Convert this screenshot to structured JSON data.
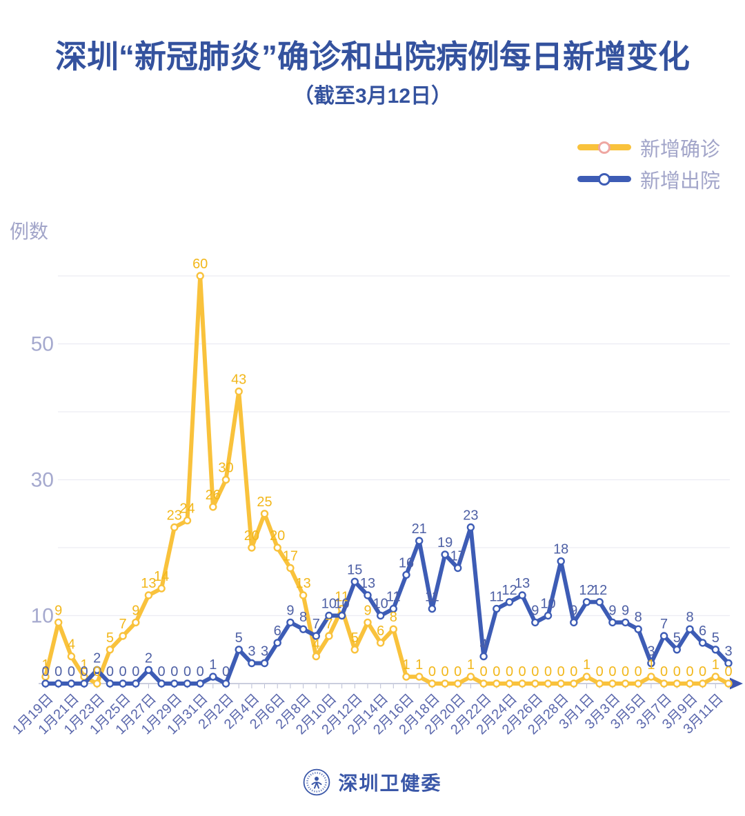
{
  "header": {
    "title": "深圳“新冠肺炎”确诊和出院病例每日新增变化",
    "subtitle": "（截至3月12日）"
  },
  "footer": {
    "brand": "深圳卫健委"
  },
  "colors": {
    "title": "#34529E",
    "confirmed": "#F9C23C",
    "discharged": "#3D5CB5",
    "confirmed_label": "#F2B71B",
    "discharged_label": "#4E60A5",
    "legend_text": "#A2A5C9",
    "date_label": "#5A67AC",
    "y_tick_label": "#A5A9CE",
    "grid": "#ECECF2",
    "axis_line": "#B9BDD4",
    "axis_arrow": "#3D55B0"
  },
  "chart_data": {
    "type": "line",
    "y_axis_title": "例数",
    "x": [
      "1月19日",
      "1月20日",
      "1月21日",
      "1月22日",
      "1月23日",
      "1月24日",
      "1月25日",
      "1月26日",
      "1月27日",
      "1月28日",
      "1月29日",
      "1月30日",
      "1月31日",
      "2月1日",
      "2月2日",
      "2月3日",
      "2月4日",
      "2月5日",
      "2月6日",
      "2月7日",
      "2月8日",
      "2月9日",
      "2月10日",
      "2月11日",
      "2月12日",
      "2月13日",
      "2月14日",
      "2月15日",
      "2月16日",
      "2月17日",
      "2月18日",
      "2月19日",
      "2月20日",
      "2月21日",
      "2月22日",
      "2月23日",
      "2月24日",
      "2月25日",
      "2月26日",
      "2月27日",
      "2月28日",
      "2月29日",
      "3月1日",
      "3月2日",
      "3月3日",
      "3月4日",
      "3月5日",
      "3月6日",
      "3月7日",
      "3月8日",
      "3月9日",
      "3月10日",
      "3月11日",
      "3月12日"
    ],
    "x_label_step": 2,
    "series": [
      {
        "name": "新增确诊",
        "color": "#F9C23C",
        "label_color": "#F2B71B",
        "legend_ring": "#EFA7A2",
        "values": [
          1,
          9,
          4,
          1,
          0,
          5,
          7,
          9,
          13,
          14,
          23,
          24,
          60,
          26,
          30,
          43,
          20,
          25,
          20,
          17,
          13,
          4,
          7,
          11,
          5,
          9,
          6,
          8,
          1,
          1,
          0,
          0,
          0,
          1,
          0,
          0,
          0,
          0,
          0,
          0,
          0,
          0,
          1,
          0,
          0,
          0,
          0,
          1,
          0,
          0,
          0,
          0,
          1,
          0
        ]
      },
      {
        "name": "新增出院",
        "color": "#3D5CB5",
        "label_color": "#4E60A5",
        "legend_ring": "#3D5CB5",
        "values": [
          0,
          0,
          0,
          0,
          2,
          0,
          0,
          0,
          2,
          0,
          0,
          0,
          0,
          1,
          0,
          5,
          3,
          3,
          6,
          9,
          8,
          7,
          10,
          10,
          15,
          13,
          10,
          11,
          16,
          21,
          11,
          19,
          17,
          23,
          4,
          11,
          12,
          13,
          9,
          10,
          18,
          9,
          12,
          12,
          9,
          9,
          8,
          3,
          7,
          5,
          8,
          6,
          5,
          3
        ]
      }
    ],
    "ylim": [
      0,
      62
    ],
    "y_gridlines": [
      10,
      20,
      30,
      40,
      50,
      60
    ],
    "y_tick_labels": [
      10,
      30,
      50
    ],
    "grid": true,
    "legend_position": "top-right"
  }
}
